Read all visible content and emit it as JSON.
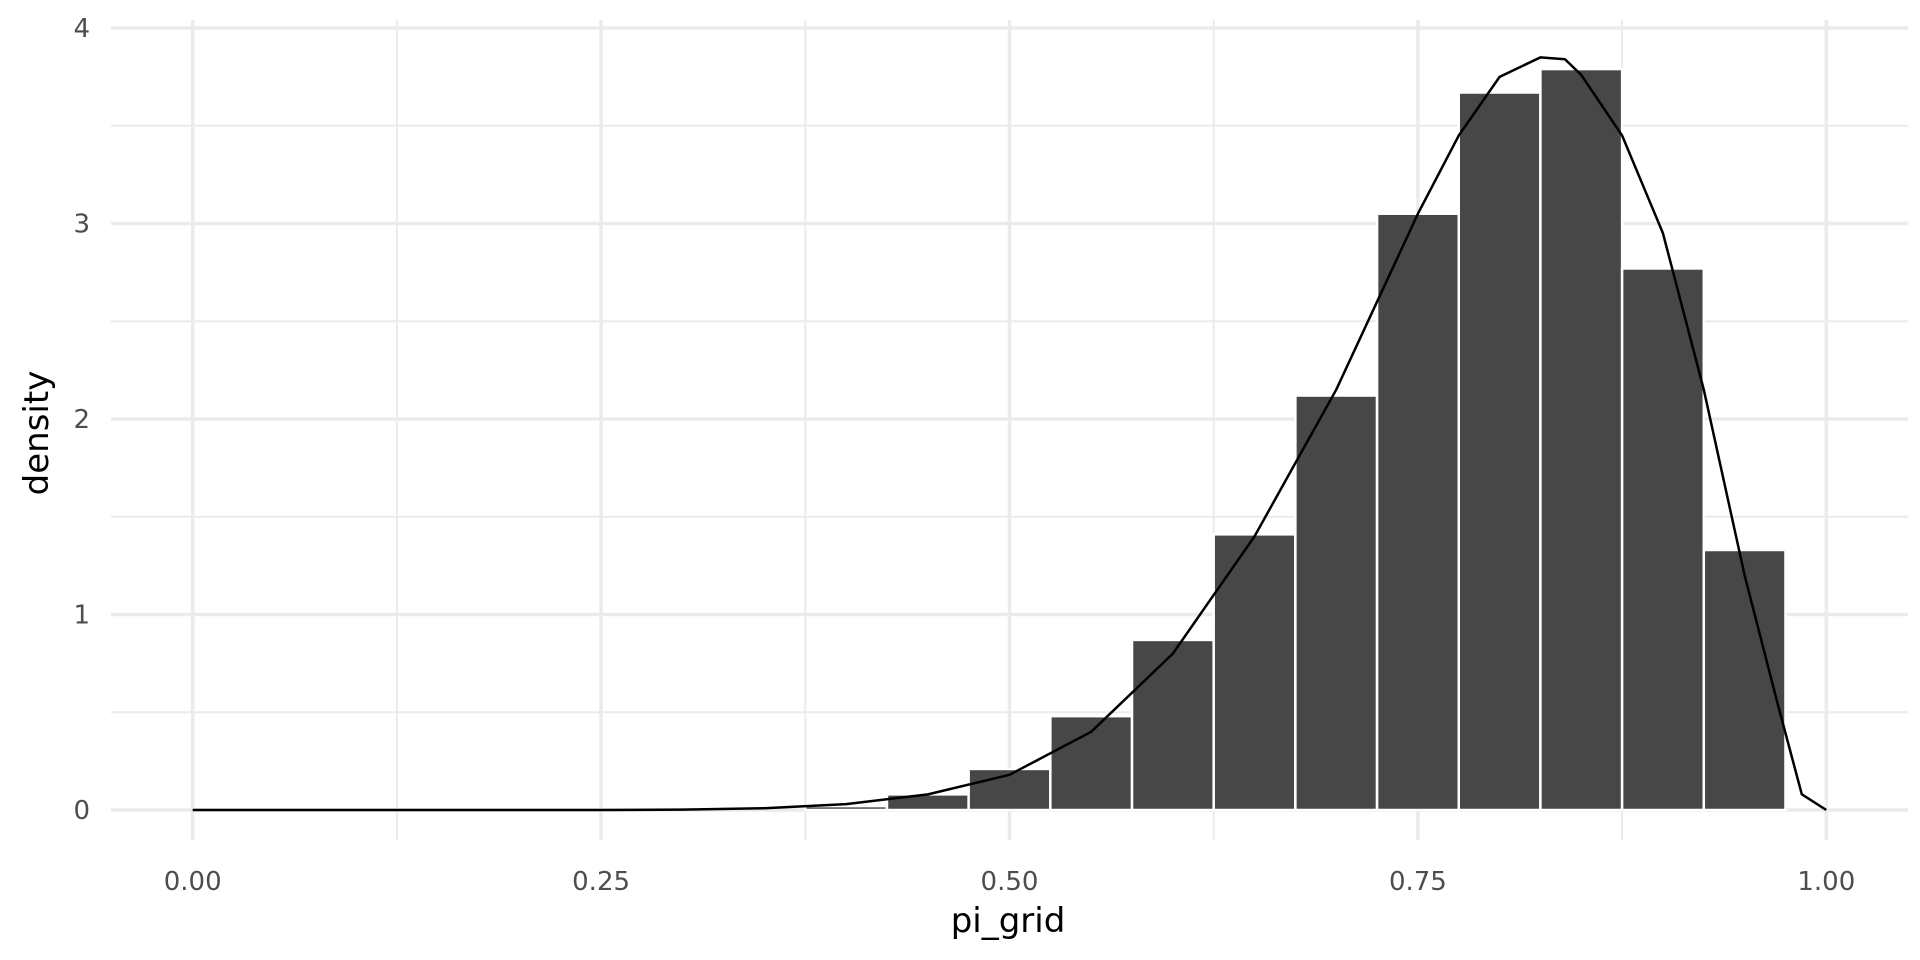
{
  "chart_data": {
    "type": "bar",
    "subtype": "histogram-with-density-curve",
    "title": "",
    "xlabel": "pi_grid",
    "ylabel": "density",
    "xlim": [
      -0.05,
      1.05
    ],
    "ylim": [
      0,
      4
    ],
    "x_ticks": [
      {
        "value": 0.0,
        "label": "0.00"
      },
      {
        "value": 0.25,
        "label": "0.25"
      },
      {
        "value": 0.5,
        "label": "0.50"
      },
      {
        "value": 0.75,
        "label": "0.75"
      },
      {
        "value": 1.0,
        "label": "1.00"
      }
    ],
    "y_ticks": [
      {
        "value": 0,
        "label": "0"
      },
      {
        "value": 1,
        "label": "1"
      },
      {
        "value": 2,
        "label": "2"
      },
      {
        "value": 3,
        "label": "3"
      },
      {
        "value": 4,
        "label": "4"
      }
    ],
    "grid": true,
    "bar_color": "#474747",
    "bar_border_color": "#ffffff",
    "line_color": "#000000",
    "grid_color": "#ebebeb",
    "bins": [
      {
        "x0": 0.375,
        "x1": 0.425,
        "density": 0.02
      },
      {
        "x0": 0.425,
        "x1": 0.475,
        "density": 0.08
      },
      {
        "x0": 0.475,
        "x1": 0.525,
        "density": 0.21
      },
      {
        "x0": 0.525,
        "x1": 0.575,
        "density": 0.48
      },
      {
        "x0": 0.575,
        "x1": 0.625,
        "density": 0.87
      },
      {
        "x0": 0.625,
        "x1": 0.675,
        "density": 1.41
      },
      {
        "x0": 0.675,
        "x1": 0.725,
        "density": 2.12
      },
      {
        "x0": 0.725,
        "x1": 0.775,
        "density": 3.05
      },
      {
        "x0": 0.775,
        "x1": 0.825,
        "density": 3.67
      },
      {
        "x0": 0.825,
        "x1": 0.875,
        "density": 3.79
      },
      {
        "x0": 0.875,
        "x1": 0.925,
        "density": 2.77
      },
      {
        "x0": 0.925,
        "x1": 0.975,
        "density": 1.33
      }
    ],
    "curve": {
      "x": [
        0.0,
        0.05,
        0.1,
        0.15,
        0.2,
        0.25,
        0.3,
        0.35,
        0.4,
        0.45,
        0.5,
        0.55,
        0.6,
        0.65,
        0.7,
        0.725,
        0.75,
        0.775,
        0.8,
        0.825,
        0.84,
        0.85,
        0.875,
        0.9,
        0.925,
        0.95,
        0.97,
        0.985,
        1.0
      ],
      "y": [
        0.0,
        0.0,
        0.0,
        0.0,
        0.0,
        0.0,
        0.002,
        0.009,
        0.03,
        0.08,
        0.18,
        0.4,
        0.8,
        1.4,
        2.15,
        2.6,
        3.05,
        3.45,
        3.75,
        3.85,
        3.84,
        3.76,
        3.45,
        2.95,
        2.15,
        1.2,
        0.55,
        0.08,
        0.0
      ]
    }
  }
}
